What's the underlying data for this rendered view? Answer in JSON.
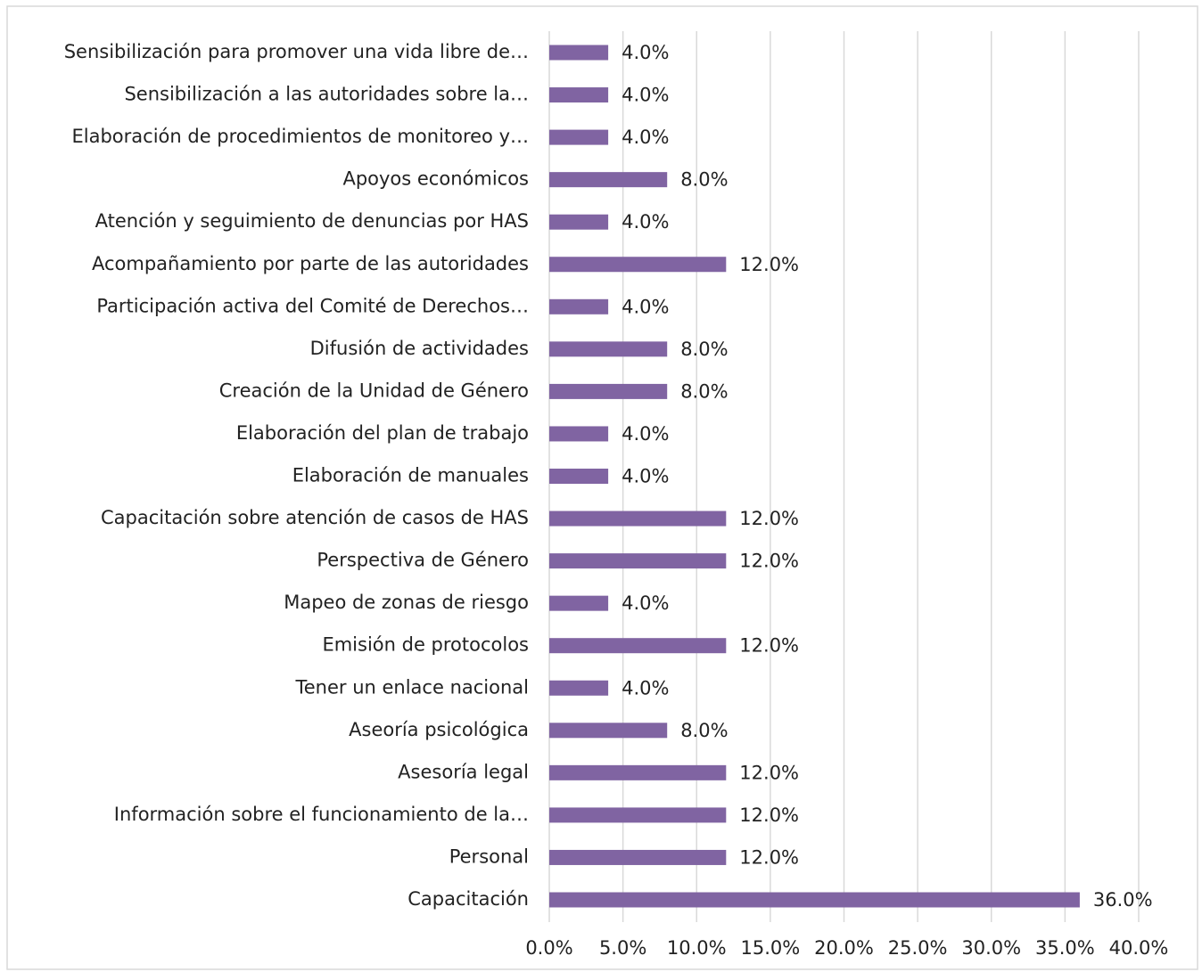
{
  "chart_data": {
    "type": "barh",
    "categories": [
      "Sensibilización para promover una vida libre de…",
      "Sensibilización a las autoridades sobre la…",
      "Elaboración de procedimientos de monitoreo y…",
      "Apoyos económicos",
      "Atención y seguimiento de denuncias por HAS",
      "Acompañamiento por parte de las autoridades",
      "Participación activa del Comité de Derechos…",
      "Difusión de actividades",
      "Creación de la Unidad de Género",
      "Elaboración del plan de trabajo",
      "Elaboración de manuales",
      "Capacitación sobre atención de casos de HAS",
      "Perspectiva de Género",
      "Mapeo de zonas de riesgo",
      "Emisión de protocolos",
      "Tener un enlace nacional",
      "Aseoría psicológica",
      "Asesoría legal",
      "Información sobre el funcionamiento de la…",
      "Personal",
      "Capacitación"
    ],
    "values": [
      4,
      4,
      4,
      8,
      4,
      12,
      4,
      8,
      8,
      4,
      4,
      12,
      12,
      4,
      12,
      4,
      8,
      12,
      12,
      12,
      36
    ],
    "value_labels": [
      "4.0%",
      "4.0%",
      "4.0%",
      "8.0%",
      "4.0%",
      "12.0%",
      "4.0%",
      "8.0%",
      "8.0%",
      "4.0%",
      "4.0%",
      "12.0%",
      "12.0%",
      "4.0%",
      "12.0%",
      "4.0%",
      "8.0%",
      "12.0%",
      "12.0%",
      "12.0%",
      "36.0%"
    ],
    "color": "#8064a2",
    "xlim": [
      0,
      40
    ],
    "xticks": [
      {
        "value": 0,
        "label": "0.0%"
      },
      {
        "value": 5,
        "label": "5.0%"
      },
      {
        "value": 10,
        "label": "10.0%"
      },
      {
        "value": 15,
        "label": "15.0%"
      },
      {
        "value": 20,
        "label": "20.0%"
      },
      {
        "value": 25,
        "label": "25.0%"
      },
      {
        "value": 30,
        "label": "30.0%"
      },
      {
        "value": 35,
        "label": "35.0%"
      },
      {
        "value": 40,
        "label": "40.0%"
      }
    ],
    "grid": true
  }
}
